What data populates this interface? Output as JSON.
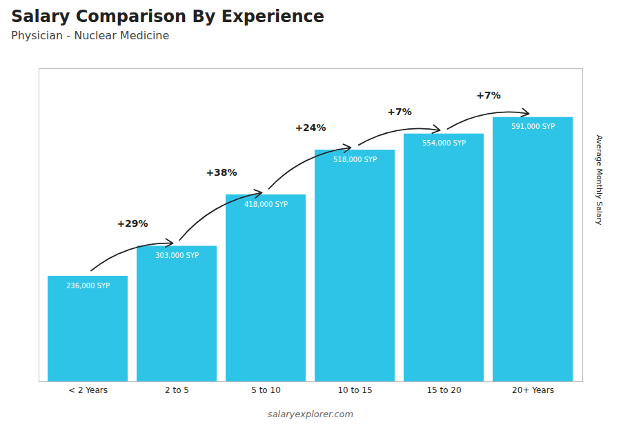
{
  "chart_data": {
    "type": "bar",
    "title": "Salary Comparison By Experience",
    "subtitle": "Physician - Nuclear Medicine",
    "ylabel": "Average Monthly Salary",
    "caption": "salaryexplorer.com",
    "categories": [
      "< 2 Years",
      "2 to 5",
      "5 to 10",
      "10 to 15",
      "15 to 20",
      "20+ Years"
    ],
    "values": [
      236000,
      303000,
      418000,
      518000,
      554000,
      591000
    ],
    "value_labels": [
      "236,000 SYP",
      "303,000 SYP",
      "418,000 SYP",
      "518,000 SYP",
      "554,000 SYP",
      "591,000 SYP"
    ],
    "data_labels": true,
    "color": "#2ec4e8",
    "ylim": [
      0,
      700000
    ],
    "tick_labels": "x",
    "grid": false,
    "annotations": [
      {
        "text": "+29%",
        "from": "< 2 Years",
        "to": "2 to 5"
      },
      {
        "text": "+38%",
        "from": "2 to 5",
        "to": "5 to 10"
      },
      {
        "text": "+24%",
        "from": "5 to 10",
        "to": "10 to 15"
      },
      {
        "text": "+7%",
        "from": "10 to 15",
        "to": "15 to 20"
      },
      {
        "text": "+7%",
        "from": "15 to 20",
        "to": "20+ Years"
      }
    ]
  }
}
